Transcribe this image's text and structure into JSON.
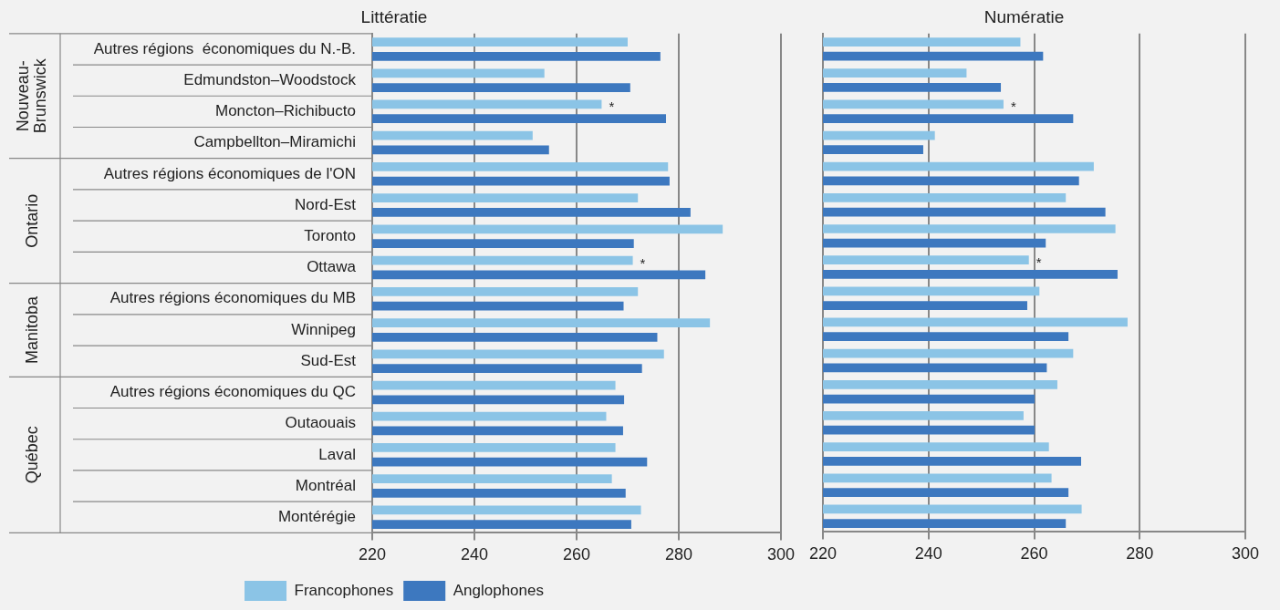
{
  "chart_data": [
    {
      "type": "bar",
      "title": "Littératie",
      "orientation": "horizontal",
      "categories": [
        "Autres régions  économiques du N.-B.",
        "Edmundston–Woodstock",
        "Moncton–Richibucto",
        "Campbellton–Miramichi",
        "Autres régions économiques de l'ON",
        "Nord-Est",
        "Toronto",
        "Ottawa",
        "Autres régions économiques du MB",
        "Winnipeg",
        "Sud-Est",
        "Autres régions économiques du QC",
        "Outaouais",
        "Laval",
        "Montréal",
        "Montérégie"
      ],
      "series": [
        {
          "name": "Francophones",
          "color": "#8bc4e6",
          "values": [
            270.0,
            253.7,
            264.9,
            251.4,
            277.9,
            272.0,
            288.6,
            271.0,
            272.0,
            286.1,
            277.1,
            267.6,
            265.8,
            267.6,
            266.9,
            272.6
          ]
        },
        {
          "name": "Anglophones",
          "color": "#3d78bf",
          "values": [
            276.4,
            270.5,
            277.5,
            254.6,
            278.2,
            282.3,
            271.2,
            285.2,
            269.2,
            275.8,
            272.8,
            269.3,
            269.1,
            273.8,
            269.6,
            270.7
          ]
        }
      ],
      "xlim": [
        220,
        300
      ],
      "xticks": [
        220,
        240,
        260,
        280,
        300
      ],
      "grid": "x",
      "legend": "bottom",
      "annotations": [
        {
          "text": "Nouveau-Brunswick",
          "y": "Autres régions  économiques du N.-B."
        },
        {
          "text": "Ontario",
          "y": "Autres régions économiques de l'ON"
        },
        {
          "text": "Manitoba",
          "y": "Autres régions économiques du MB"
        },
        {
          "text": "Québec",
          "y": "Autres régions économiques du QC"
        },
        {
          "text": "*",
          "x": 264.9,
          "y": "Moncton–Richibucto"
        },
        {
          "text": "*",
          "x": 271.0,
          "y": "Ottawa"
        }
      ]
    },
    {
      "type": "bar",
      "title": "Numératie",
      "orientation": "horizontal",
      "categories": [
        "Autres régions  économiques du N.-B.",
        "Edmundston–Woodstock",
        "Moncton–Richibucto",
        "Campbellton–Miramichi",
        "Autres régions économiques de l'ON",
        "Nord-Est",
        "Toronto",
        "Ottawa",
        "Autres régions économiques du MB",
        "Winnipeg",
        "Sud-Est",
        "Autres régions économiques du QC",
        "Outaouais",
        "Laval",
        "Montréal",
        "Montérégie"
      ],
      "series": [
        {
          "color": "#8bc4e6",
          "values": [
            257.4,
            247.2,
            254.2,
            241.2,
            271.3,
            266.0,
            275.4,
            259.0,
            261.0,
            277.7,
            267.4,
            264.4,
            258.0,
            262.8,
            263.3,
            269.0
          ]
        },
        {
          "color": "#3d78bf",
          "values": [
            261.7,
            253.7,
            267.4,
            239.0,
            268.5,
            273.5,
            262.2,
            275.8,
            258.7,
            266.5,
            262.4,
            260.1,
            260.1,
            268.9,
            266.5,
            266.0
          ]
        }
      ],
      "xlim": [
        220,
        300
      ],
      "xticks": [
        220,
        240,
        260,
        280,
        300
      ],
      "grid": "x",
      "tick_labels": "x",
      "annotations": [
        {
          "text": "*",
          "x": 254.2,
          "y": "Moncton–Richibucto"
        },
        {
          "text": "*",
          "x": 259.0,
          "y": "Ottawa"
        }
      ]
    }
  ]
}
